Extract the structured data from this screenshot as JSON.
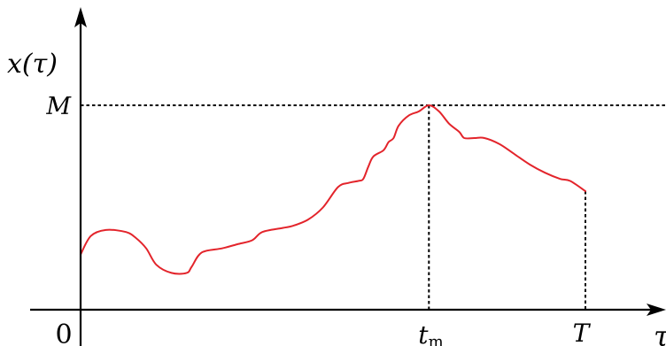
{
  "chart_data": {
    "type": "line",
    "ylabel": "x(τ)",
    "xlabel": "τ",
    "x_ticks": [
      {
        "label": "0",
        "x": 0
      },
      {
        "label": "t",
        "sub": "m",
        "x": 0.69
      },
      {
        "label": "T",
        "x": 1.0
      }
    ],
    "y_ticks": [
      {
        "label": "M",
        "y": 1.0
      }
    ],
    "xlim": [
      0,
      1.16
    ],
    "ylim": [
      0,
      1.0
    ],
    "maximum": {
      "x": 0.69,
      "y": 1.0
    },
    "end_point": {
      "x": 1.0,
      "y": 0.58
    },
    "colors": {
      "series": "#e3242b",
      "axes": "#000000"
    },
    "series": [
      {
        "points": [
          [
            0.0,
            0.27
          ],
          [
            0.02,
            0.36
          ],
          [
            0.05,
            0.39
          ],
          [
            0.09,
            0.38
          ],
          [
            0.11,
            0.35
          ],
          [
            0.13,
            0.3
          ],
          [
            0.15,
            0.22
          ],
          [
            0.18,
            0.18
          ],
          [
            0.21,
            0.18
          ],
          [
            0.22,
            0.21
          ],
          [
            0.24,
            0.28
          ],
          [
            0.28,
            0.3
          ],
          [
            0.31,
            0.32
          ],
          [
            0.34,
            0.34
          ],
          [
            0.36,
            0.38
          ],
          [
            0.4,
            0.4
          ],
          [
            0.42,
            0.41
          ],
          [
            0.45,
            0.44
          ],
          [
            0.48,
            0.5
          ],
          [
            0.51,
            0.6
          ],
          [
            0.53,
            0.62
          ],
          [
            0.55,
            0.63
          ],
          [
            0.56,
            0.64
          ],
          [
            0.57,
            0.7
          ],
          [
            0.58,
            0.75
          ],
          [
            0.6,
            0.78
          ],
          [
            0.61,
            0.82
          ],
          [
            0.62,
            0.84
          ],
          [
            0.63,
            0.9
          ],
          [
            0.65,
            0.95
          ],
          [
            0.67,
            0.97
          ],
          [
            0.69,
            1.0
          ],
          [
            0.71,
            0.97
          ],
          [
            0.73,
            0.91
          ],
          [
            0.75,
            0.87
          ],
          [
            0.76,
            0.84
          ],
          [
            0.78,
            0.84
          ],
          [
            0.8,
            0.84
          ],
          [
            0.83,
            0.81
          ],
          [
            0.86,
            0.76
          ],
          [
            0.89,
            0.71
          ],
          [
            0.92,
            0.67
          ],
          [
            0.95,
            0.64
          ],
          [
            0.97,
            0.63
          ],
          [
            1.0,
            0.58
          ]
        ]
      }
    ]
  }
}
